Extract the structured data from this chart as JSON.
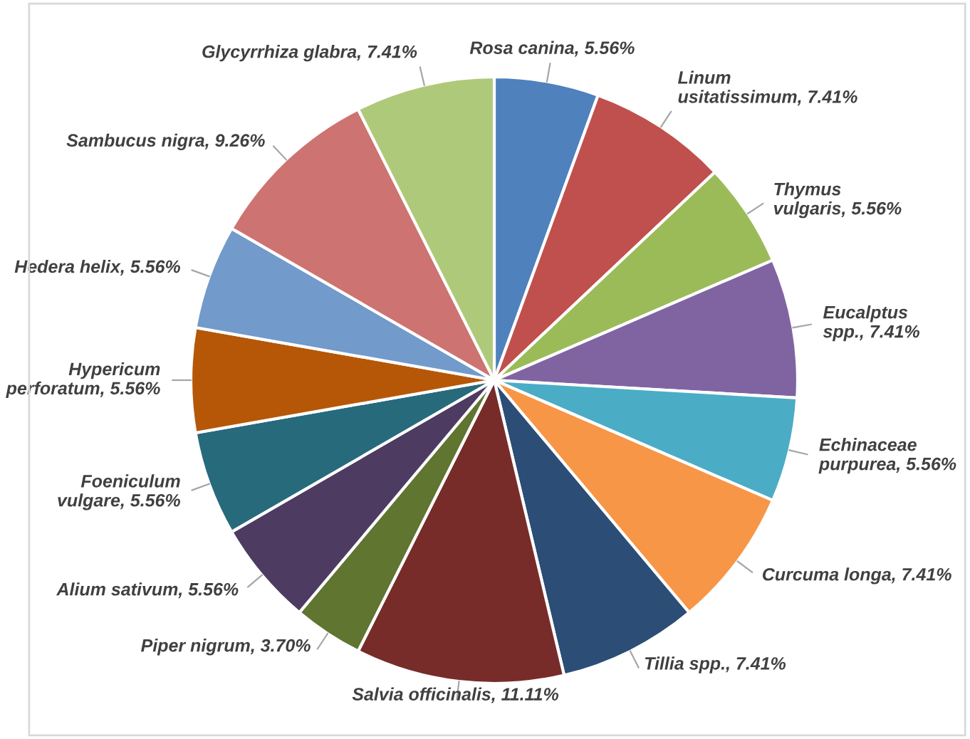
{
  "chart_data": {
    "type": "pie",
    "categories": [
      "Rosa canina",
      "Linum\nusitatissimum",
      "Thymus\nvulgaris",
      "Eucalptus\nspp.",
      "Echinaceae\npurpurea",
      "Curcuma longa",
      "Tillia spp.",
      "Salvia officinalis",
      "Piper nigrum",
      "Alium sativum",
      "Foeniculum\nvulgare",
      "Hypericum\nperforatum",
      "Hedera helix",
      "Sambucus nigra",
      "Glycyrrhiza glabra"
    ],
    "values": [
      5.56,
      7.41,
      5.56,
      7.41,
      5.56,
      7.41,
      7.41,
      11.11,
      3.7,
      5.56,
      5.56,
      5.56,
      5.56,
      9.26,
      7.41
    ],
    "value_labels": [
      "5.56%",
      "7.41%",
      "5.56%",
      "7.41%",
      "5.56%",
      "7.41%",
      "7.41%",
      "11.11%",
      "3.70%",
      "5.56%",
      "5.56%",
      "5.56%",
      "5.56%",
      "9.26%",
      "7.41%"
    ],
    "colors": [
      "#4f81bd",
      "#c0504d",
      "#9bbb59",
      "#8064a2",
      "#4bacc6",
      "#f79646",
      "#2c4d75",
      "#772c2a",
      "#5f7530",
      "#4d3b62",
      "#276a7c",
      "#b65708",
      "#729aca",
      "#cd7371",
      "#afc97a"
    ]
  }
}
